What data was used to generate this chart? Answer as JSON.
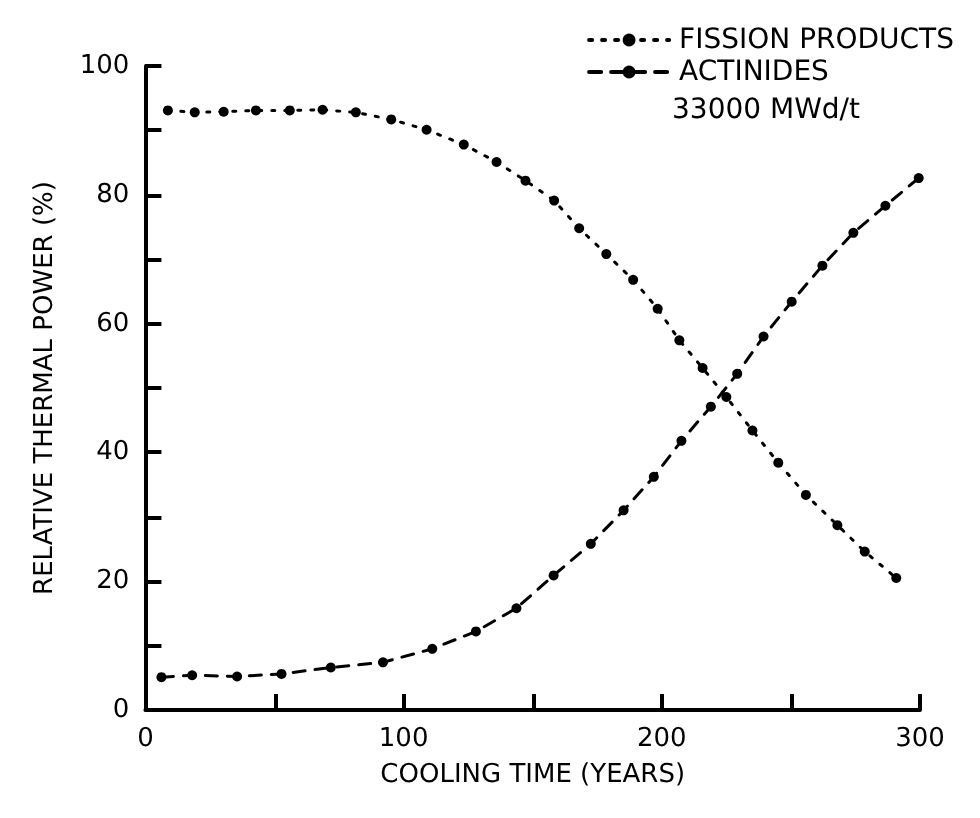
{
  "chart_data": {
    "type": "line",
    "xlabel": "COOLING TIME (YEARS)",
    "ylabel": "RELATIVE THERMAL POWER (%)",
    "xlim": [
      0,
      300
    ],
    "ylim": [
      0,
      100
    ],
    "xticks": [
      0,
      {
        "value": 50,
        "label": null
      },
      100,
      {
        "value": 150,
        "label": null
      },
      200,
      {
        "value": 250,
        "label": null
      },
      300
    ],
    "yticks": [
      0,
      {
        "value": 10,
        "label": null
      },
      20,
      {
        "value": 30,
        "label": null
      },
      40,
      {
        "value": 50,
        "label": null
      },
      60,
      {
        "value": 70,
        "label": null
      },
      80,
      {
        "value": 90,
        "label": null
      },
      100
    ],
    "grid": false,
    "legend": "top right",
    "marker": "circle",
    "annotations": [
      "33000 MWd/t"
    ],
    "series": [
      {
        "name": "FISSION PRODUCTS",
        "color": "#000000",
        "line_style": "dotted",
        "x": [
          8.7,
          19.1,
          30.3,
          42.8,
          55.9,
          68.6,
          81.5,
          95.2,
          108.9,
          123.3,
          136,
          147.2,
          158.3,
          168,
          178.5,
          188.9,
          198.4,
          206.8,
          215.8,
          225,
          235.1,
          245.1,
          255.8,
          268,
          278.6,
          290.8
        ],
        "values": [
          93.1,
          92.8,
          92.9,
          93.1,
          93.1,
          93.2,
          92.8,
          91.7,
          90.1,
          87.8,
          85.1,
          82.2,
          79.1,
          74.8,
          70.8,
          66.8,
          62.3,
          57.4,
          53.1,
          48.6,
          43.4,
          38.4,
          33.4,
          28.7,
          24.6,
          20.5
        ]
      },
      {
        "name": "ACTINIDES",
        "color": "#000000",
        "line_style": "dashed",
        "x": [
          6.2,
          18.1,
          35.5,
          52.7,
          71.8,
          92,
          111.1,
          128,
          143.7,
          158.1,
          172.5,
          185.2,
          196.9,
          207.6,
          219,
          229.2,
          239.4,
          250.3,
          262.2,
          274.2,
          286.6,
          299.5
        ],
        "values": [
          5.1,
          5.4,
          5.2,
          5.6,
          6.6,
          7.4,
          9.5,
          12.2,
          15.8,
          20.9,
          25.8,
          31,
          36.2,
          41.8,
          47.1,
          52.2,
          58,
          63.4,
          69,
          74.1,
          78.3,
          82.6
        ]
      }
    ]
  }
}
